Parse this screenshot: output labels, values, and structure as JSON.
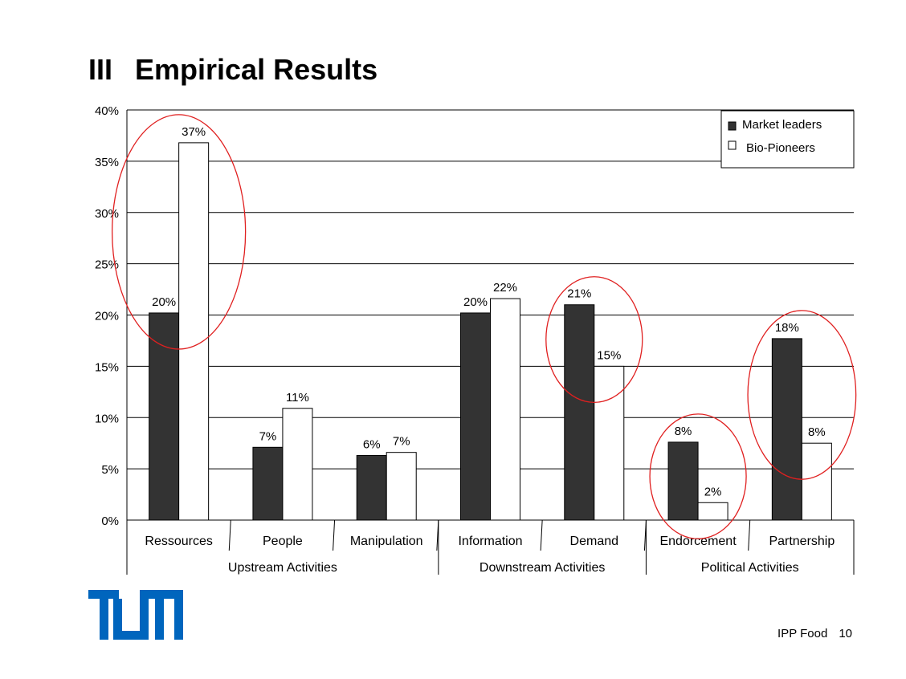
{
  "slide": {
    "section": "III",
    "title": "Empirical Results",
    "footer_label": "IPP Food",
    "page_number": "10",
    "logo_text": "TUM",
    "brand_color": "#0065BD"
  },
  "chart_data": {
    "type": "bar",
    "categories": [
      "Ressources",
      "People",
      "Manipulation",
      "Information",
      "Demand",
      "Endorcement",
      "Partnership"
    ],
    "groups": [
      {
        "label": "Upstream Activities",
        "categories": [
          "Ressources",
          "People",
          "Manipulation"
        ]
      },
      {
        "label": "Downstream Activities",
        "categories": [
          "Information",
          "Demand"
        ]
      },
      {
        "label": "Political Activities",
        "categories": [
          "Endorcement",
          "Partnership"
        ]
      }
    ],
    "series": [
      {
        "name": "Market leaders",
        "values": [
          20.2,
          7.1,
          6.3,
          20.2,
          21.0,
          7.6,
          17.7
        ],
        "labels": [
          "20%",
          "7%",
          "6%",
          "20%",
          "21%",
          "8%",
          "18%"
        ],
        "color": "#333333"
      },
      {
        "name": "Bio-Pioneers",
        "values": [
          36.8,
          10.9,
          6.6,
          21.6,
          15.0,
          1.7,
          7.5
        ],
        "labels": [
          "37%",
          "11%",
          "7%",
          "22%",
          "15%",
          "2%",
          "8%"
        ],
        "color": "#ffffff"
      }
    ],
    "yticks": [
      "0%",
      "5%",
      "10%",
      "15%",
      "20%",
      "25%",
      "30%",
      "35%",
      "40%"
    ],
    "ylim": [
      0,
      40
    ],
    "grid": true,
    "legend_position": "top-right",
    "highlight_circles": [
      "Ressources",
      "Demand",
      "Endorcement",
      "Partnership"
    ],
    "highlight_color": "#e02020"
  }
}
